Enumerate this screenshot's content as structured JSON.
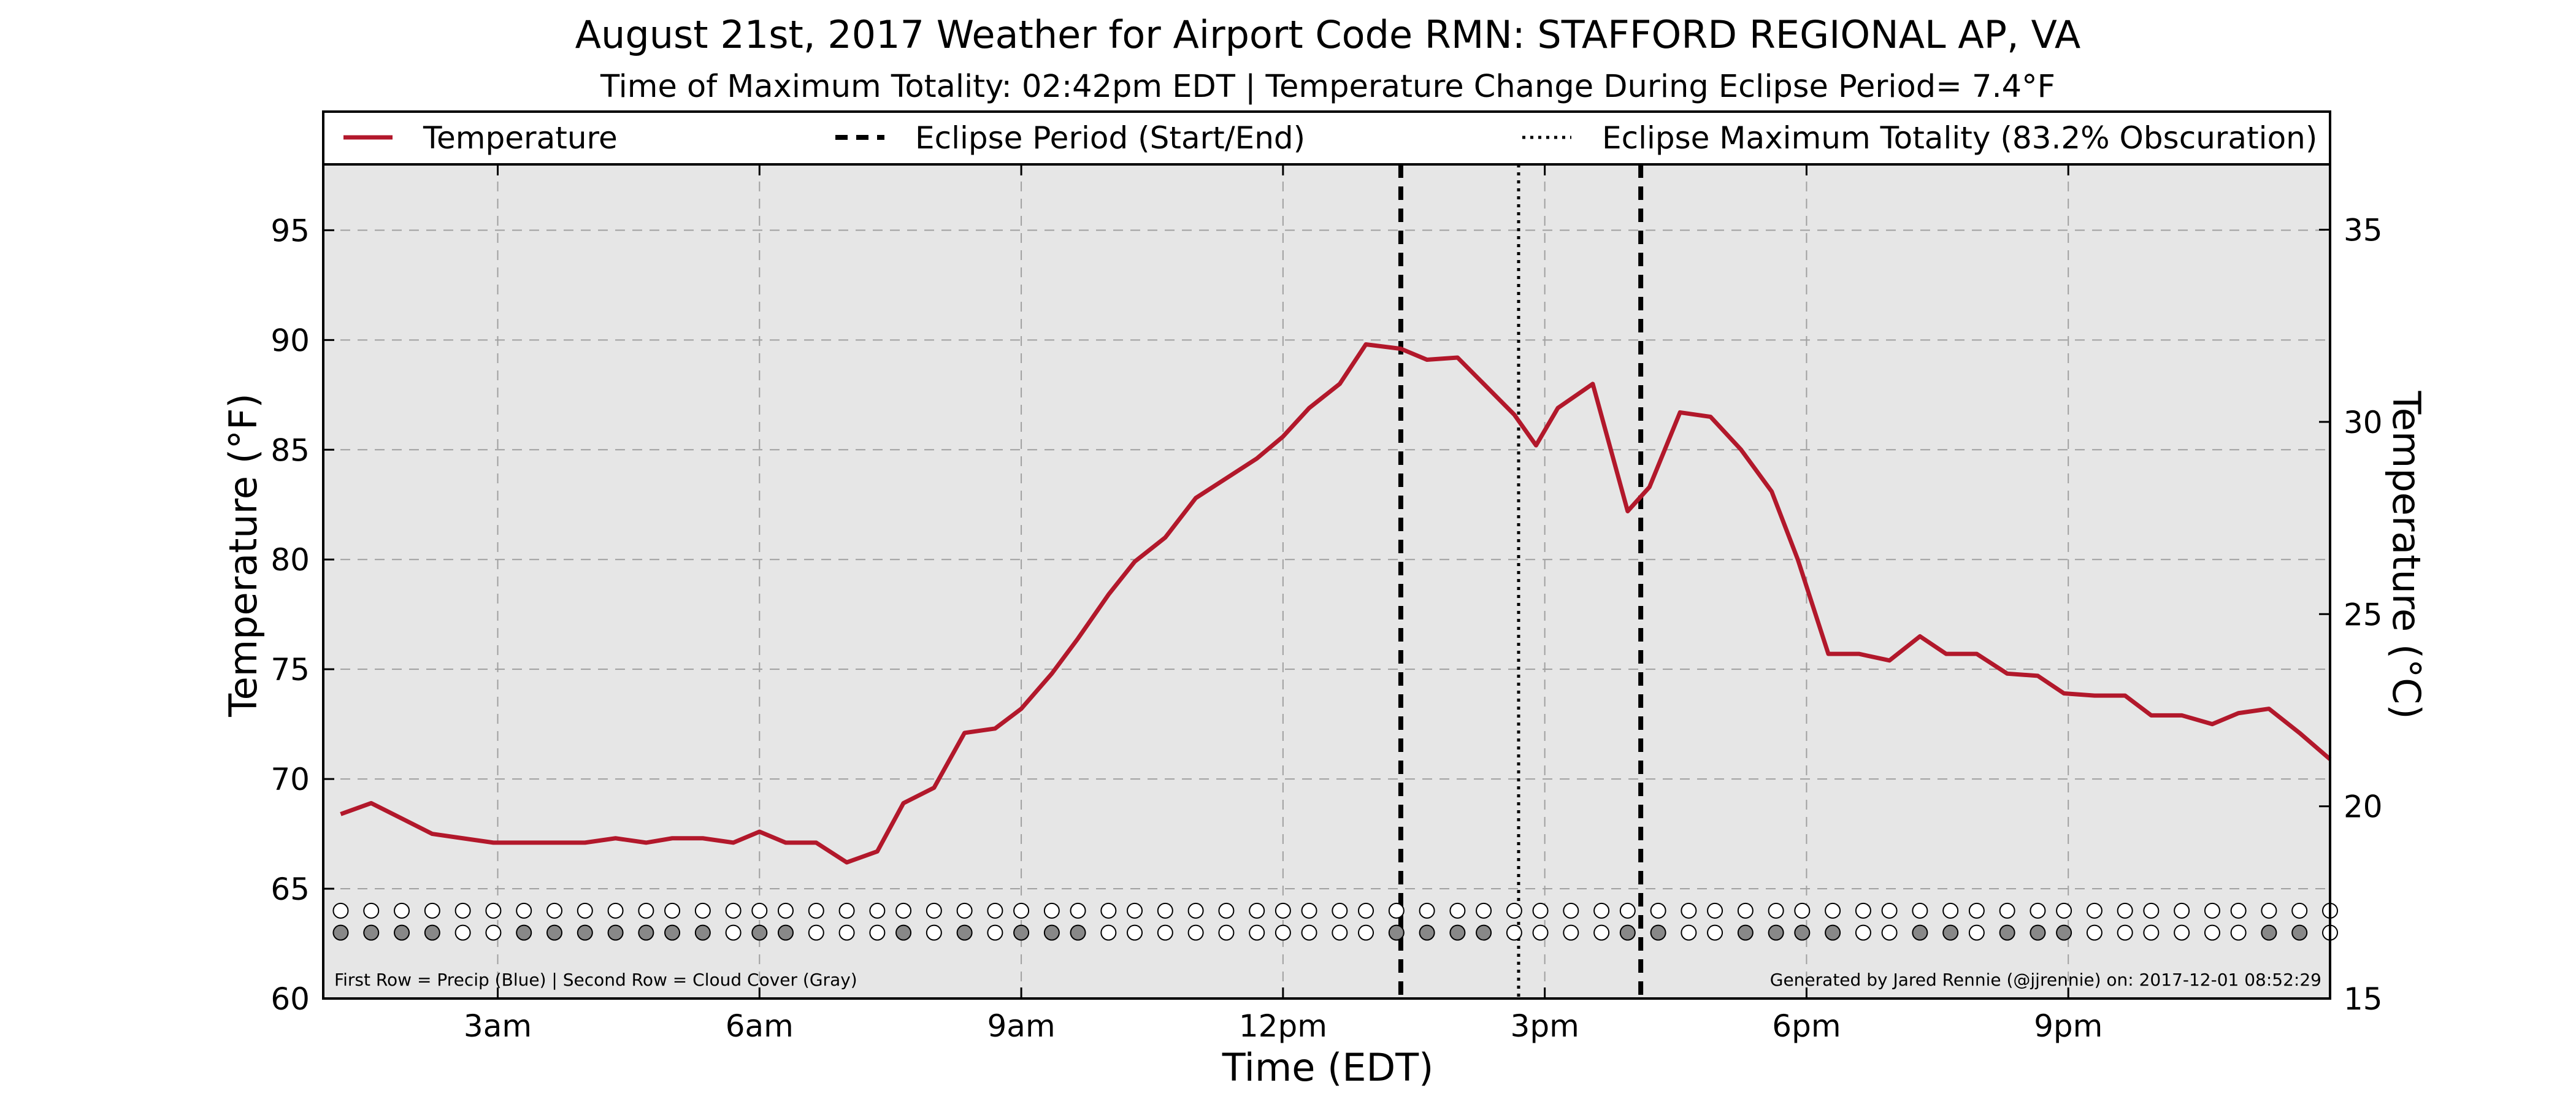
{
  "title": "August 21st, 2017 Weather for Airport Code RMN: STAFFORD REGIONAL AP, VA",
  "subtitle": "Time of Maximum Totality: 02:42pm EDT | Temperature Change During Eclipse Period= 7.4°F",
  "colors": {
    "temperature_line": "#b2182b",
    "plot_background": "#e6e6e6",
    "grid": "#a0a0a0",
    "cloud_filled": "#888888",
    "marker_empty": "#ffffff"
  },
  "legend": {
    "temperature": "Temperature",
    "eclipse_period": "Eclipse Period (Start/End)",
    "max_totality": "Eclipse Maximum Totality (83.2% Obscuration)"
  },
  "footnotes": {
    "left": "First Row = Precip (Blue) | Second Row = Cloud Cover (Gray)",
    "right": "Generated by Jared Rennie (@jjrennie) on: 2017-12-01 08:52:29"
  },
  "chart_data": {
    "type": "line",
    "xlabel": "Time (EDT)",
    "ylabel": "Temperature (°F)",
    "ylabel_right": "Temperature (°C)",
    "x_unit": "hours",
    "xlim": [
      1.0,
      24.0
    ],
    "ylim": [
      60,
      98
    ],
    "ylim_right": [
      15,
      36.7
    ],
    "x_ticks": [
      3,
      6,
      9,
      12,
      15,
      18,
      21
    ],
    "x_tick_labels": [
      "3am",
      "6am",
      "9am",
      "12pm",
      "3pm",
      "6pm",
      "9pm"
    ],
    "y_ticks": [
      60,
      65,
      70,
      75,
      80,
      85,
      90,
      95
    ],
    "y_ticks_right": [
      15,
      20,
      25,
      30,
      35
    ],
    "grid": true,
    "legend_position": "top",
    "series": [
      {
        "name": "Temperature",
        "x": [
          1.2,
          1.55,
          1.9,
          2.25,
          2.6,
          2.95,
          3.3,
          3.65,
          4.0,
          4.35,
          4.7,
          5.0,
          5.35,
          5.7,
          6.0,
          6.3,
          6.65,
          7.0,
          7.35,
          7.65,
          8.0,
          8.35,
          8.7,
          9.0,
          9.35,
          9.65,
          10.0,
          10.3,
          10.65,
          11.0,
          11.35,
          11.7,
          12.0,
          12.3,
          12.65,
          12.95,
          13.35,
          13.65,
          14.0,
          14.3,
          14.65,
          14.9,
          15.15,
          15.55,
          15.95,
          16.2,
          16.55,
          16.9,
          17.25,
          17.6,
          17.9,
          18.25,
          18.6,
          18.95,
          19.3,
          19.6,
          19.95,
          20.3,
          20.65,
          20.95,
          21.3,
          21.65,
          21.95,
          22.3,
          22.65,
          22.95,
          23.3,
          23.65,
          24.0
        ],
        "values": [
          68.4,
          68.9,
          68.2,
          67.5,
          67.3,
          67.1,
          67.1,
          67.1,
          67.1,
          67.3,
          67.1,
          67.3,
          67.3,
          67.1,
          67.6,
          67.1,
          67.1,
          66.2,
          66.7,
          68.9,
          69.6,
          72.1,
          72.3,
          73.2,
          74.8,
          76.4,
          78.4,
          79.9,
          81.0,
          82.8,
          83.7,
          84.6,
          85.6,
          86.9,
          88.0,
          89.8,
          89.6,
          89.1,
          89.2,
          88.0,
          86.6,
          85.2,
          86.9,
          88.0,
          82.2,
          83.3,
          86.7,
          86.5,
          85.0,
          83.1,
          80.0,
          75.7,
          75.7,
          75.4,
          76.5,
          75.7,
          75.7,
          74.8,
          74.7,
          73.9,
          73.8,
          73.8,
          72.9,
          72.9,
          72.5,
          73.0,
          73.2,
          72.1,
          70.9
        ]
      }
    ],
    "eclipse_start": 13.35,
    "eclipse_end": 16.1,
    "max_totality": 14.7,
    "marker_times": [
      1.2,
      1.55,
      1.9,
      2.25,
      2.6,
      2.95,
      3.3,
      3.65,
      4.0,
      4.35,
      4.7,
      5.0,
      5.35,
      5.7,
      6.0,
      6.3,
      6.65,
      7.0,
      7.35,
      7.65,
      8.0,
      8.35,
      8.7,
      9.0,
      9.35,
      9.65,
      10.0,
      10.3,
      10.65,
      11.0,
      11.35,
      11.7,
      12.0,
      12.3,
      12.65,
      12.95,
      13.3,
      13.65,
      14.0,
      14.3,
      14.65,
      14.95,
      15.3,
      15.65,
      15.95,
      16.3,
      16.65,
      16.95,
      17.3,
      17.65,
      17.95,
      18.3,
      18.65,
      18.95,
      19.3,
      19.65,
      19.95,
      20.3,
      20.65,
      20.95,
      21.3,
      21.65,
      21.95,
      22.3,
      22.65,
      22.95,
      23.3,
      23.65,
      24.0
    ],
    "precip_row": [
      0,
      0,
      0,
      0,
      0,
      0,
      0,
      0,
      0,
      0,
      0,
      0,
      0,
      0,
      0,
      0,
      0,
      0,
      0,
      0,
      0,
      0,
      0,
      0,
      0,
      0,
      0,
      0,
      0,
      0,
      0,
      0,
      0,
      0,
      0,
      0,
      0,
      0,
      0,
      0,
      0,
      0,
      0,
      0,
      0,
      0,
      0,
      0,
      0,
      0,
      0,
      0,
      0,
      0,
      0,
      0,
      0,
      0,
      0,
      0,
      0,
      0,
      0,
      0,
      0,
      0,
      0,
      0,
      0
    ],
    "cloud_row": [
      1,
      1,
      1,
      1,
      0,
      0,
      1,
      1,
      1,
      1,
      1,
      1,
      1,
      0,
      1,
      1,
      0,
      0,
      0,
      1,
      0,
      1,
      0,
      1,
      1,
      1,
      0,
      0,
      0,
      0,
      0,
      0,
      0,
      0,
      0,
      0,
      1,
      1,
      1,
      1,
      0,
      0,
      0,
      0,
      1,
      1,
      0,
      0,
      1,
      1,
      1,
      1,
      0,
      0,
      1,
      1,
      0,
      1,
      1,
      1,
      0,
      0,
      0,
      0,
      0,
      0,
      1,
      1,
      0
    ]
  }
}
